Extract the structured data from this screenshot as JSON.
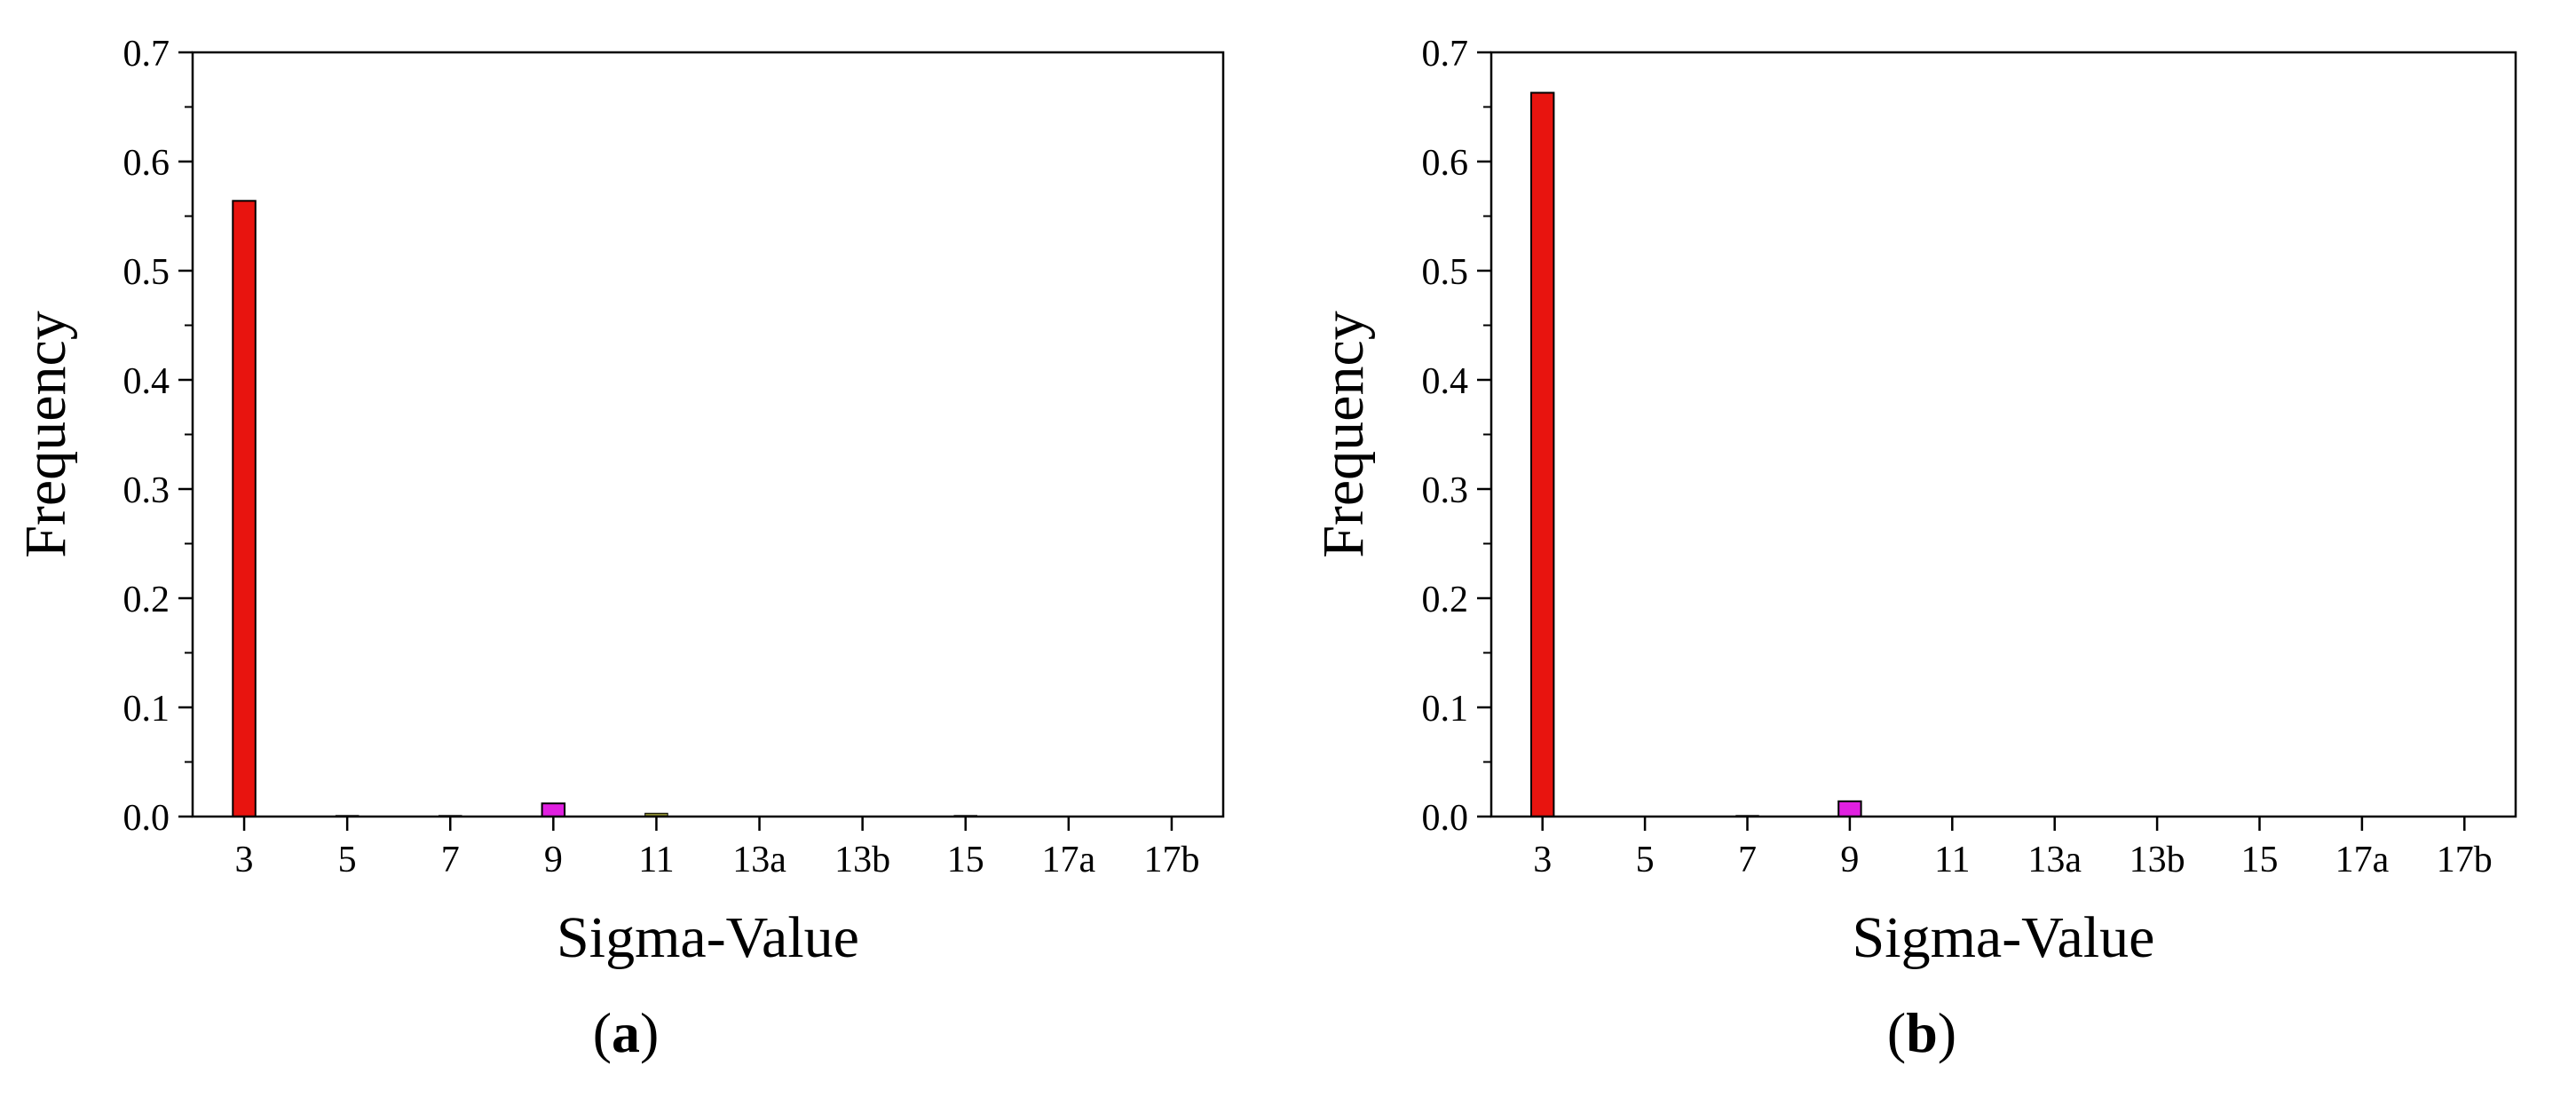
{
  "chart_data": [
    {
      "panel_label": "a",
      "type": "bar",
      "categories": [
        "3",
        "5",
        "7",
        "9",
        "11",
        "13a",
        "13b",
        "15",
        "17a",
        "17b"
      ],
      "values": [
        0.564,
        0.001,
        0.001,
        0.012,
        0.003,
        0.0,
        0.0,
        0.001,
        0.0,
        0.0
      ],
      "colors": [
        "#e8140f",
        "#3a3a3a",
        "#3a3a3a",
        "#e020e0",
        "#8a8a30",
        "#3a3a3a",
        "#3a3a3a",
        "#3a3a3a",
        "#3a3a3a",
        "#3a3a3a"
      ],
      "xlabel": "Sigma-Value",
      "ylabel": "Frequency",
      "ylim": [
        0,
        0.7
      ],
      "yticks": [
        "0.0",
        "0.1",
        "0.2",
        "0.3",
        "0.4",
        "0.5",
        "0.6",
        "0.7"
      ],
      "grid": false,
      "legend": "none"
    },
    {
      "panel_label": "b",
      "type": "bar",
      "categories": [
        "3",
        "5",
        "7",
        "9",
        "11",
        "13a",
        "13b",
        "15",
        "17a",
        "17b"
      ],
      "values": [
        0.663,
        0.0,
        0.001,
        0.014,
        0.0,
        0.0,
        0.0,
        0.0,
        0.0,
        0.0
      ],
      "colors": [
        "#e8140f",
        "#3a3a3a",
        "#3a3a3a",
        "#e020e0",
        "#3a3a3a",
        "#3a3a3a",
        "#3a3a3a",
        "#3a3a3a",
        "#3a3a3a",
        "#3a3a3a"
      ],
      "xlabel": "Sigma-Value",
      "ylabel": "Frequency",
      "ylim": [
        0,
        0.7
      ],
      "yticks": [
        "0.0",
        "0.1",
        "0.2",
        "0.3",
        "0.4",
        "0.5",
        "0.6",
        "0.7"
      ],
      "grid": false,
      "legend": "none"
    }
  ]
}
